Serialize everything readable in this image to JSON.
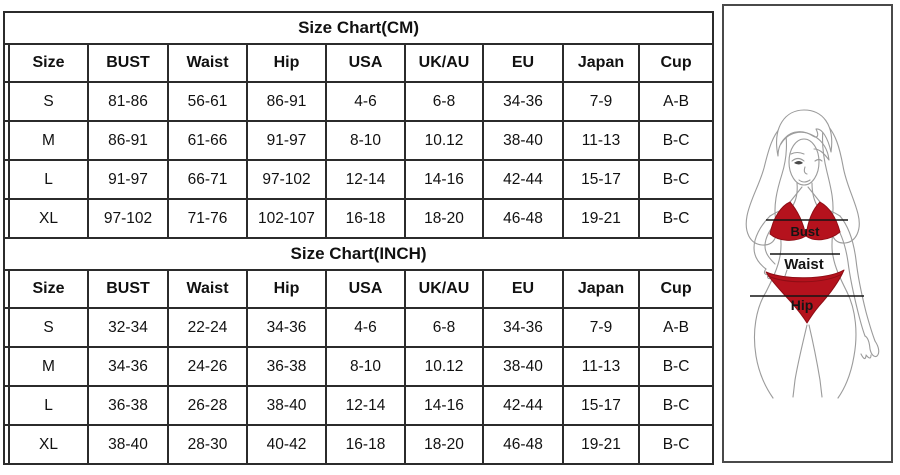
{
  "page": {
    "background_color": "#ffffff",
    "border_color": "#2b2b2b"
  },
  "tables": [
    {
      "title": "Size Chart(CM)",
      "columns": [
        "Size",
        "BUST",
        "Waist",
        "Hip",
        "USA",
        "UK/AU",
        "EU",
        "Japan",
        "Cup"
      ],
      "rows": [
        [
          "S",
          "81-86",
          "56-61",
          "86-91",
          "4-6",
          "6-8",
          "34-36",
          "7-9",
          "A-B"
        ],
        [
          "M",
          "86-91",
          "61-66",
          "91-97",
          "8-10",
          "10.12",
          "38-40",
          "11-13",
          "B-C"
        ],
        [
          "L",
          "91-97",
          "66-71",
          "97-102",
          "12-14",
          "14-16",
          "42-44",
          "15-17",
          "B-C"
        ],
        [
          "XL",
          "97-102",
          "71-76",
          "102-107",
          "16-18",
          "18-20",
          "46-48",
          "19-21",
          "B-C"
        ]
      ]
    },
    {
      "title": "Size Chart(INCH)",
      "columns": [
        "Size",
        "BUST",
        "Waist",
        "Hip",
        "USA",
        "UK/AU",
        "EU",
        "Japan",
        "Cup"
      ],
      "rows": [
        [
          "S",
          "32-34",
          "22-24",
          "34-36",
          "4-6",
          "6-8",
          "34-36",
          "7-9",
          "A-B"
        ],
        [
          "M",
          "34-36",
          "24-26",
          "36-38",
          "8-10",
          "10.12",
          "38-40",
          "11-13",
          "B-C"
        ],
        [
          "L",
          "36-38",
          "26-28",
          "38-40",
          "12-14",
          "14-16",
          "42-44",
          "15-17",
          "B-C"
        ],
        [
          "XL",
          "38-40",
          "28-30",
          "40-42",
          "16-18",
          "18-20",
          "46-48",
          "19-21",
          "B-C"
        ]
      ]
    }
  ],
  "figure": {
    "description": "line-art woman wearing red bikini with measurement lines",
    "labels": {
      "bust": "Bust",
      "waist": "Waist",
      "hip": "Hip"
    },
    "bikini_color": "#b5121d",
    "sketch_line_color": "#9b9b9b",
    "measure_line_color": "#151515"
  }
}
